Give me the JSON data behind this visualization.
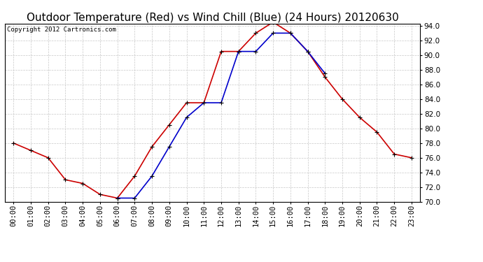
{
  "title": "Outdoor Temperature (Red) vs Wind Chill (Blue) (24 Hours) 20120630",
  "copyright_text": "Copyright 2012 Cartronics.com",
  "x_labels": [
    "00:00",
    "01:00",
    "02:00",
    "03:00",
    "04:00",
    "05:00",
    "06:00",
    "07:00",
    "08:00",
    "09:00",
    "10:00",
    "11:00",
    "12:00",
    "13:00",
    "14:00",
    "15:00",
    "16:00",
    "17:00",
    "18:00",
    "19:00",
    "20:00",
    "21:00",
    "22:00",
    "23:00"
  ],
  "red_temps": [
    78.0,
    77.0,
    76.0,
    73.0,
    72.5,
    71.0,
    70.5,
    73.5,
    77.5,
    80.5,
    83.5,
    83.5,
    90.5,
    90.5,
    93.0,
    94.5,
    93.0,
    90.5,
    87.0,
    84.0,
    81.5,
    79.5,
    76.5,
    76.0
  ],
  "blue_temps": [
    null,
    null,
    null,
    null,
    null,
    null,
    70.5,
    70.5,
    73.5,
    77.5,
    81.5,
    83.5,
    83.5,
    90.5,
    90.5,
    93.0,
    93.0,
    90.5,
    87.5,
    null,
    null,
    null,
    null,
    null
  ],
  "ylim_min": 70.0,
  "ylim_max": 94.0,
  "ytick_step": 2.0,
  "bg_color": "#ffffff",
  "grid_color": "#c8c8c8",
  "red_color": "#cc0000",
  "blue_color": "#0000cc",
  "marker_color": "#000000",
  "title_fontsize": 11,
  "tick_fontsize": 7.5,
  "copyright_fontsize": 6.5
}
